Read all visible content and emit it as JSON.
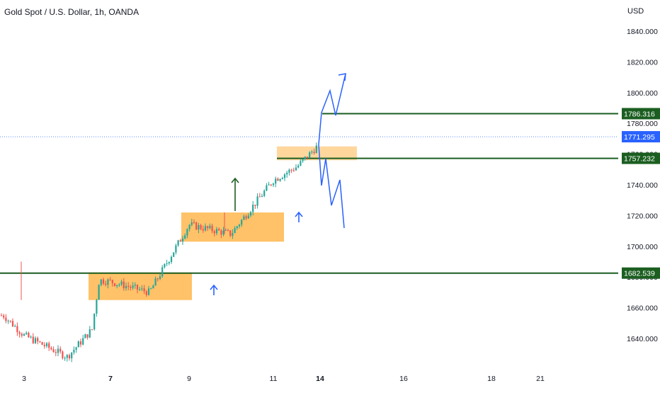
{
  "header": {
    "title": "Gold Spot / U.S. Dollar, 1h, OANDA",
    "currency": "USD"
  },
  "colors": {
    "up": "#26a69a",
    "down": "#ef5350",
    "level_line": "#1b5e20",
    "box_fill": "#ffb74d",
    "arrow_blue": "#2962ff",
    "arrow_green": "#1b5e20",
    "current_price": "#2962ff"
  },
  "chart_data": {
    "type": "candlestick",
    "instrument": "Gold Spot / U.S. Dollar",
    "timeframe": "1h",
    "source": "OANDA",
    "ylim": [
      1618,
      1848
    ],
    "x_ticks": [
      "3",
      "7",
      "9",
      "11",
      "14",
      "16",
      "18",
      "21"
    ],
    "x_tick_bold": [
      "7",
      "14"
    ],
    "y_ticks": [
      "1840.000",
      "1820.000",
      "1800.000",
      "1780.000",
      "1760.000",
      "1740.000",
      "1720.000",
      "1700.000",
      "1680.000",
      "1660.000",
      "1640.000"
    ],
    "levels": [
      {
        "label": "1786.316",
        "value": 1786.316
      },
      {
        "label": "1757.232",
        "value": 1757.232
      },
      {
        "label": "1682.539",
        "value": 1682.539
      }
    ],
    "current_price": {
      "label": "1771.295",
      "value": 1771.295
    },
    "consolidation_boxes": [
      {
        "from": "Dec 6",
        "to": "Dec 8",
        "low": 1665,
        "high": 1683
      },
      {
        "from": "Dec 9",
        "to": "Dec 11",
        "low": 1703,
        "high": 1722
      },
      {
        "from": "Dec 11",
        "to": "Dec 14",
        "low": 1756,
        "high": 1765
      }
    ],
    "price_path": [
      {
        "x": "Dec 2",
        "y": 1655
      },
      {
        "x": "Dec 3",
        "y": 1642
      },
      {
        "x": "Dec 4",
        "y": 1628
      },
      {
        "x": "Dec 5",
        "y": 1646
      },
      {
        "x": "Dec 6",
        "y": 1678
      },
      {
        "x": "Dec 7",
        "y": 1677
      },
      {
        "x": "Dec 8",
        "y": 1670
      },
      {
        "x": "Dec 9",
        "y": 1714
      },
      {
        "x": "Dec 10",
        "y": 1708
      },
      {
        "x": "Dec 11",
        "y": 1743
      },
      {
        "x": "Dec 12",
        "y": 1752
      },
      {
        "x": "Dec 14",
        "y": 1767
      }
    ],
    "scenario_up": [
      {
        "x": "Dec 14",
        "y": 1767
      },
      {
        "x": "Dec 14",
        "y": 1786
      },
      {
        "x": "Dec 14",
        "y": 1801
      },
      {
        "x": "Dec 15",
        "y": 1785
      },
      {
        "x": "Dec 15",
        "y": 1813
      }
    ],
    "scenario_down": [
      {
        "x": "Dec 14",
        "y": 1767
      },
      {
        "x": "Dec 14",
        "y": 1740
      },
      {
        "x": "Dec 14",
        "y": 1757
      },
      {
        "x": "Dec 15",
        "y": 1726
      },
      {
        "x": "Dec 15",
        "y": 1742
      },
      {
        "x": "Dec 15",
        "y": 1712
      }
    ],
    "grid": false,
    "legend": "none"
  }
}
